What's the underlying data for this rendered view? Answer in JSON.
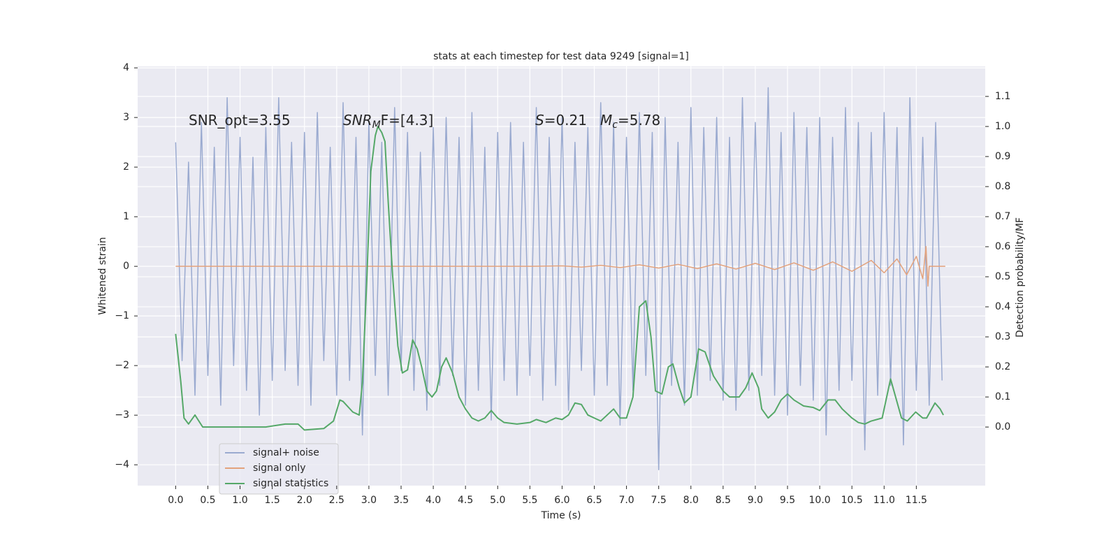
{
  "chart_data": {
    "type": "line",
    "title": "stats at each timestep for test data 9249 [signal=1]",
    "xlabel": "Time (s)",
    "ylabel": "Whitened strain",
    "y2label": "Detection probability/MF",
    "xlim": [
      -0.59,
      12.57
    ],
    "ylim": [
      -4.42,
      4.03
    ],
    "y2lim": [
      -0.195,
      1.2
    ],
    "xticks": [
      {
        "value": 0,
        "label": "0.0"
      },
      0.5,
      {
        "value": 1,
        "label": "1.0"
      },
      1.5,
      {
        "value": 2,
        "label": "2.0"
      },
      2.5,
      {
        "value": 3,
        "label": "3.0"
      },
      3.5,
      {
        "value": 4,
        "label": "4.0"
      },
      4.5,
      {
        "value": 5,
        "label": "5.0"
      },
      5.5,
      {
        "value": 6,
        "label": "6.0"
      },
      6.5,
      {
        "value": 7,
        "label": "7.0"
      },
      7.5,
      {
        "value": 8,
        "label": "8.0"
      },
      8.5,
      {
        "value": 9,
        "label": "9.0"
      },
      9.5,
      {
        "value": 10,
        "label": "10.0"
      },
      10.5,
      {
        "value": 11,
        "label": "11.0"
      },
      11.5
    ],
    "yticks": [
      {
        "value": -4,
        "label": "−4"
      },
      {
        "value": -3,
        "label": "−3"
      },
      {
        "value": -2,
        "label": "−2"
      },
      {
        "value": -1,
        "label": "−1"
      },
      0,
      1,
      2,
      3,
      4
    ],
    "y2ticks": [
      {
        "value": 0,
        "label": "0.0"
      },
      0.1,
      0.2,
      0.3,
      0.4,
      0.5,
      0.6,
      0.7,
      0.8,
      0.9,
      {
        "value": 1,
        "label": "1.0"
      },
      1.1
    ],
    "grid": true,
    "legend": "lower left",
    "annotations": [
      [
        "SNR_opt=3.55"
      ],
      [
        "SNR",
        "M",
        "F=[4.3]"
      ],
      [
        "S",
        "=0.21"
      ],
      [
        "M",
        "c",
        "=5.78"
      ]
    ],
    "series": [
      {
        "name": "signal+ noise",
        "color": "#9aaad0",
        "axis": "y",
        "x": [
          0,
          0.1,
          0.2,
          0.3,
          0.4,
          0.5,
          0.6,
          0.7,
          0.8,
          0.9,
          1,
          1.1,
          1.2,
          1.3,
          1.4,
          1.5,
          1.6,
          1.7,
          1.8,
          1.9,
          2,
          2.1,
          2.2,
          2.3,
          2.4,
          2.5,
          2.6,
          2.7,
          2.8,
          2.9,
          3,
          3.1,
          3.2,
          3.3,
          3.4,
          3.5,
          3.6,
          3.7,
          3.8,
          3.9,
          4,
          4.1,
          4.2,
          4.3,
          4.4,
          4.5,
          4.6,
          4.7,
          4.8,
          4.9,
          5,
          5.1,
          5.2,
          5.3,
          5.4,
          5.5,
          5.6,
          5.7,
          5.8,
          5.9,
          6,
          6.1,
          6.2,
          6.3,
          6.4,
          6.5,
          6.6,
          6.7,
          6.8,
          6.9,
          7,
          7.1,
          7.2,
          7.3,
          7.4,
          7.5,
          7.6,
          7.7,
          7.8,
          7.9,
          8,
          8.1,
          8.2,
          8.3,
          8.4,
          8.5,
          8.6,
          8.7,
          8.8,
          8.9,
          9,
          9.1,
          9.2,
          9.3,
          9.4,
          9.5,
          9.6,
          9.7,
          9.8,
          9.9,
          10,
          10.1,
          10.2,
          10.3,
          10.4,
          10.5,
          10.6,
          10.7,
          10.8,
          10.9,
          11,
          11.1,
          11.2,
          11.3,
          11.4,
          11.5,
          11.6,
          11.7,
          11.8,
          11.9
        ],
        "values": [
          2.5,
          -1.9,
          2.1,
          -2.6,
          2.9,
          -2.2,
          2.4,
          -2.8,
          3.4,
          -2.0,
          2.6,
          -2.5,
          2.2,
          -3.0,
          2.8,
          -2.3,
          3.4,
          -2.1,
          2.5,
          -2.4,
          2.7,
          -2.8,
          3.1,
          -1.9,
          2.4,
          -2.6,
          3.3,
          -2.3,
          2.6,
          -3.4,
          2.9,
          -2.2,
          2.5,
          -2.6,
          3.2,
          -2.1,
          2.7,
          -2.5,
          2.3,
          -2.9,
          2.8,
          -2.4,
          3.0,
          -2.2,
          2.6,
          -2.8,
          3.1,
          -2.5,
          2.4,
          -3.1,
          2.7,
          -2.3,
          2.9,
          -2.6,
          2.5,
          -2.2,
          3.2,
          -2.7,
          2.6,
          -2.4,
          3.0,
          -2.9,
          2.5,
          -2.1,
          2.8,
          -2.6,
          3.3,
          -2.4,
          2.9,
          -3.2,
          2.6,
          -2.5,
          3.1,
          -2.2,
          2.7,
          -4.1,
          3.0,
          -2.4,
          2.5,
          -2.8,
          3.2,
          -2.6,
          2.8,
          -2.3,
          3.0,
          -2.7,
          2.6,
          -2.9,
          3.4,
          -2.5,
          2.9,
          -2.2,
          3.6,
          -2.6,
          2.7,
          -3.0,
          3.1,
          -2.4,
          2.8,
          -2.7,
          3.0,
          -3.4,
          2.6,
          -2.5,
          3.2,
          -2.3,
          2.9,
          -3.7,
          2.7,
          -2.6,
          3.1,
          -2.4,
          2.8,
          -3.6,
          3.4,
          -2.5,
          2.6,
          -2.8,
          2.9,
          -2.3
        ]
      },
      {
        "name": "signal only",
        "color": "#e3a27c",
        "axis": "y",
        "x": [
          0,
          5.5,
          6.0,
          6.3,
          6.6,
          6.9,
          7.2,
          7.5,
          7.8,
          8.1,
          8.4,
          8.7,
          9.0,
          9.3,
          9.6,
          9.9,
          10.2,
          10.5,
          10.8,
          11.0,
          11.2,
          11.35,
          11.5,
          11.6,
          11.65,
          11.68,
          11.7,
          11.95
        ],
        "values": [
          0,
          0,
          0.01,
          -0.015,
          0.02,
          -0.025,
          0.03,
          -0.035,
          0.04,
          -0.045,
          0.05,
          -0.055,
          0.06,
          -0.065,
          0.07,
          -0.08,
          0.09,
          -0.1,
          0.12,
          -0.13,
          0.15,
          -0.17,
          0.2,
          -0.25,
          0.4,
          -0.4,
          0,
          0
        ]
      },
      {
        "name": "signal statistics",
        "color": "#55a868",
        "axis": "y2",
        "x": [
          0,
          0.08,
          0.13,
          0.2,
          0.3,
          0.42,
          0.6,
          1.0,
          1.4,
          1.7,
          1.9,
          2.0,
          2.3,
          2.45,
          2.55,
          2.6,
          2.75,
          2.85,
          2.9,
          2.97,
          3.03,
          3.1,
          3.14,
          3.2,
          3.25,
          3.3,
          3.37,
          3.45,
          3.52,
          3.6,
          3.68,
          3.75,
          3.82,
          3.9,
          3.98,
          4.05,
          4.13,
          4.2,
          4.3,
          4.4,
          4.5,
          4.6,
          4.7,
          4.8,
          4.9,
          5.0,
          5.1,
          5.3,
          5.5,
          5.6,
          5.75,
          5.9,
          6.0,
          6.1,
          6.2,
          6.3,
          6.4,
          6.5,
          6.6,
          6.7,
          6.8,
          6.9,
          7.0,
          7.1,
          7.2,
          7.3,
          7.38,
          7.45,
          7.55,
          7.65,
          7.72,
          7.82,
          7.9,
          8.0,
          8.12,
          8.22,
          8.35,
          8.5,
          8.6,
          8.75,
          8.85,
          8.95,
          9.05,
          9.1,
          9.2,
          9.3,
          9.4,
          9.5,
          9.6,
          9.75,
          9.9,
          10.0,
          10.13,
          10.24,
          10.35,
          10.5,
          10.6,
          10.7,
          10.8,
          10.97,
          11.1,
          11.27,
          11.36,
          11.49,
          11.6,
          11.66,
          11.79,
          11.87,
          11.92
        ],
        "values": [
          0.31,
          0.15,
          0.03,
          0.01,
          0.04,
          0.0,
          0.0,
          0.0,
          0.0,
          0.01,
          0.01,
          -0.01,
          -0.005,
          0.02,
          0.09,
          0.085,
          0.05,
          0.04,
          0.15,
          0.5,
          0.85,
          0.97,
          1.0,
          0.98,
          0.95,
          0.75,
          0.5,
          0.27,
          0.18,
          0.19,
          0.29,
          0.26,
          0.2,
          0.12,
          0.1,
          0.12,
          0.2,
          0.23,
          0.18,
          0.1,
          0.06,
          0.03,
          0.02,
          0.03,
          0.055,
          0.03,
          0.015,
          0.01,
          0.015,
          0.025,
          0.015,
          0.03,
          0.025,
          0.04,
          0.08,
          0.075,
          0.04,
          0.03,
          0.02,
          0.04,
          0.06,
          0.03,
          0.03,
          0.1,
          0.4,
          0.42,
          0.3,
          0.12,
          0.11,
          0.2,
          0.21,
          0.13,
          0.08,
          0.1,
          0.26,
          0.25,
          0.17,
          0.12,
          0.1,
          0.1,
          0.13,
          0.18,
          0.13,
          0.06,
          0.03,
          0.05,
          0.09,
          0.11,
          0.09,
          0.07,
          0.065,
          0.055,
          0.09,
          0.09,
          0.06,
          0.03,
          0.015,
          0.01,
          0.02,
          0.03,
          0.16,
          0.03,
          0.02,
          0.05,
          0.03,
          0.03,
          0.08,
          0.06,
          0.04
        ]
      }
    ]
  }
}
